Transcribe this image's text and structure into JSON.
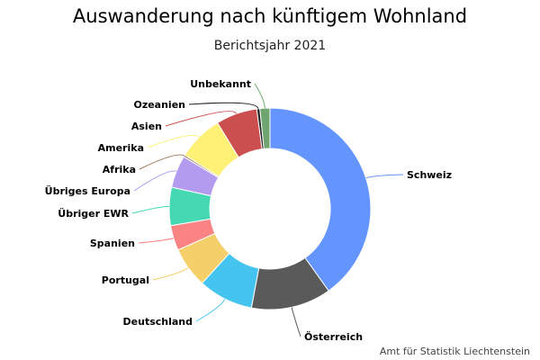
{
  "chart_data": {
    "type": "pie",
    "donut": true,
    "title": "Auswanderung nach künftigem Wohnland",
    "subtitle": "Berichtsjahr 2021",
    "legend": "none",
    "slices": [
      {
        "label": "Schweiz",
        "value": 40.0,
        "color": "#6495ff"
      },
      {
        "label": "Österreich",
        "value": 12.8,
        "color": "#5a5a5a"
      },
      {
        "label": "Deutschland",
        "value": 8.8,
        "color": "#46c4f0"
      },
      {
        "label": "Portugal",
        "value": 6.5,
        "color": "#f5cf6a"
      },
      {
        "label": "Spanien",
        "value": 4.0,
        "color": "#fb8383"
      },
      {
        "label": "Übriger EWR",
        "value": 6.1,
        "color": "#44d8b3"
      },
      {
        "label": "Übriges Europa",
        "value": 5.2,
        "color": "#b39cf0"
      },
      {
        "label": "Afrika",
        "value": 0.3,
        "color": "#a07a5a"
      },
      {
        "label": "Amerika",
        "value": 7.3,
        "color": "#fef176"
      },
      {
        "label": "Asien",
        "value": 6.6,
        "color": "#cb4f4f"
      },
      {
        "label": "Ozeanien",
        "value": 0.5,
        "color": "#222222"
      },
      {
        "label": "Unbekannt",
        "value": 1.6,
        "color": "#6fa66f"
      }
    ]
  },
  "footer": {
    "source": "Amt für Statistik Liechtenstein"
  }
}
